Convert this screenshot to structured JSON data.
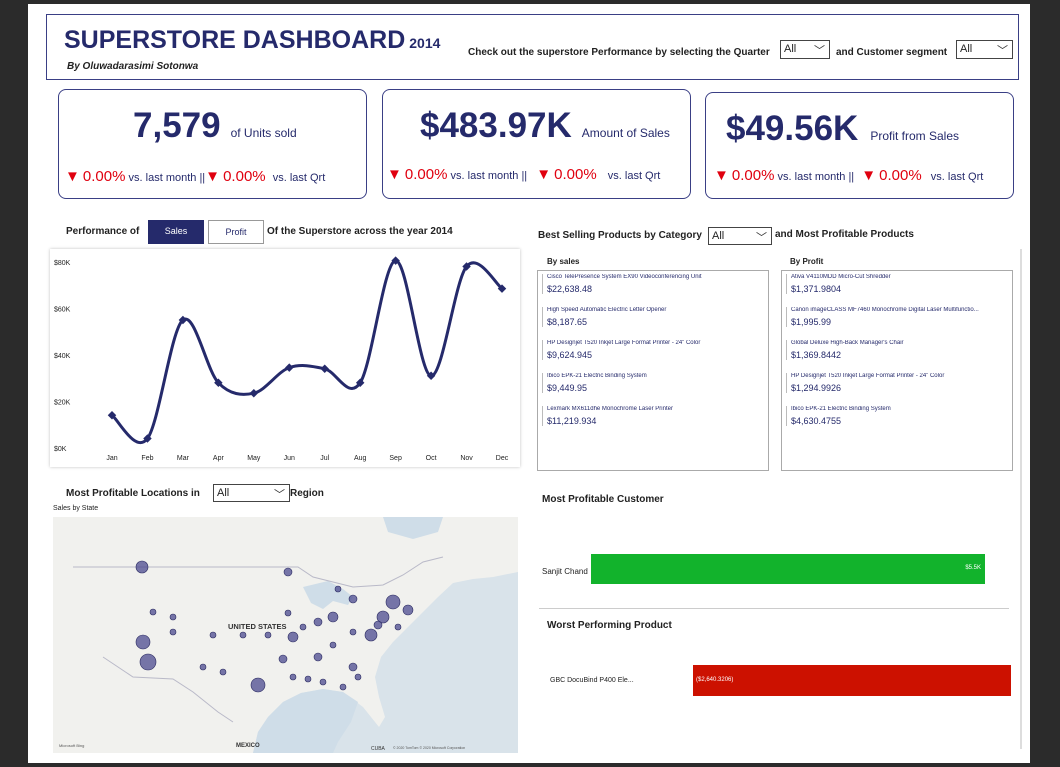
{
  "header": {
    "title": "SUPERSTORE DASHBOARD",
    "year": "2014",
    "author": "By Oluwadarasimi Sotonwa",
    "quarter_prompt": "Check out the superstore Performance by selecting the Quarter",
    "quarter_value": "All",
    "segment_prompt": "and Customer segment",
    "segment_value": "All"
  },
  "kpis": [
    {
      "value": "7,579",
      "label": "of Units sold",
      "month_pct": "0.00%",
      "month_label": "vs. last month",
      "sep": "||",
      "qtr_pct": "0.00%",
      "qtr_label": "vs. last Qrt"
    },
    {
      "value": "$483.97K",
      "label": "Amount of Sales",
      "month_pct": "0.00%",
      "month_label": "vs. last month",
      "sep": "||",
      "qtr_pct": "0.00%",
      "qtr_label": "vs. last Qrt"
    },
    {
      "value": "$49.56K",
      "label": "Profit from Sales",
      "month_pct": "0.00%",
      "month_label": "vs. last month",
      "sep": "||",
      "qtr_pct": "0.00%",
      "qtr_label": "vs. last Qrt"
    }
  ],
  "performance": {
    "prefix": "Performance of",
    "sales_tab": "Sales",
    "profit_tab": "Profit",
    "suffix": "Of the Superstore across the year 2014"
  },
  "chart_data": {
    "type": "line",
    "categories": [
      "Jan",
      "Feb",
      "Mar",
      "Apr",
      "May",
      "Jun",
      "Jul",
      "Aug",
      "Sep",
      "Oct",
      "Nov",
      "Dec"
    ],
    "values": [
      14500,
      4500,
      55500,
      28500,
      24000,
      35000,
      34500,
      28500,
      81000,
      31500,
      78500,
      69000
    ],
    "yticks": [
      "$0K",
      "$20K",
      "$40K",
      "$60K",
      "$80K"
    ],
    "ylim": [
      0,
      85000
    ],
    "color": "#252a6b"
  },
  "products": {
    "title": "Best Selling Products by Category",
    "category_value": "All",
    "title_suffix": "and Most Profitable Products",
    "by_sales_title": "By sales",
    "by_profit_title": "By Profit",
    "by_sales": [
      {
        "name": "Cisco TelePresence System EX90 Videoconferencing Unit",
        "value": "$22,638.48"
      },
      {
        "name": "High Speed Automatic Electric Letter Opener",
        "value": "$8,187.65"
      },
      {
        "name": "HP Designjet T520 Inkjet Large Format Printer - 24\" Color",
        "value": "$9,624.945"
      },
      {
        "name": "Ibico EPK-21 Electric Binding System",
        "value": "$9,449.95"
      },
      {
        "name": "Lexmark MX611dhe Monochrome Laser Printer",
        "value": "$11,219.934"
      }
    ],
    "by_profit": [
      {
        "name": "Ativa V4110MDD Micro-Cut Shredder",
        "value": "$1,371.9804"
      },
      {
        "name": "Canon imageCLASS MF7460 Monochrome Digital Laser Multifunctio...",
        "value": "$1,995.99"
      },
      {
        "name": "Global Deluxe High-Back Manager's Chair",
        "value": "$1,369.8442"
      },
      {
        "name": "HP Designjet T520 Inkjet Large Format Printer - 24\" Color",
        "value": "$1,294.9926"
      },
      {
        "name": "Ibico EPK-21 Electric Binding System",
        "value": "$4,630.4755"
      }
    ]
  },
  "locations": {
    "prefix": "Most Profitable Locations in",
    "region_value": "All",
    "suffix": "Region",
    "map_title": "Sales by State",
    "country_label": "UNITED STATES",
    "mexico_label": "MEXICO",
    "cuba_label": "CUBA",
    "attribution": "© 2020 TomTom © 2020 Microsoft Corporation",
    "bing": "Microsoft Bing",
    "bubble_color": "#4b4a8f"
  },
  "customer": {
    "title": "Most Profitable Customer",
    "name": "Sanjit Chand",
    "value": "$5.5K",
    "color": "#12b32c"
  },
  "worst": {
    "title": "Worst Performing Product",
    "name": "GBC DocuBind P400 Ele...",
    "value": "($2,640.3206)",
    "color": "#cc1100"
  }
}
